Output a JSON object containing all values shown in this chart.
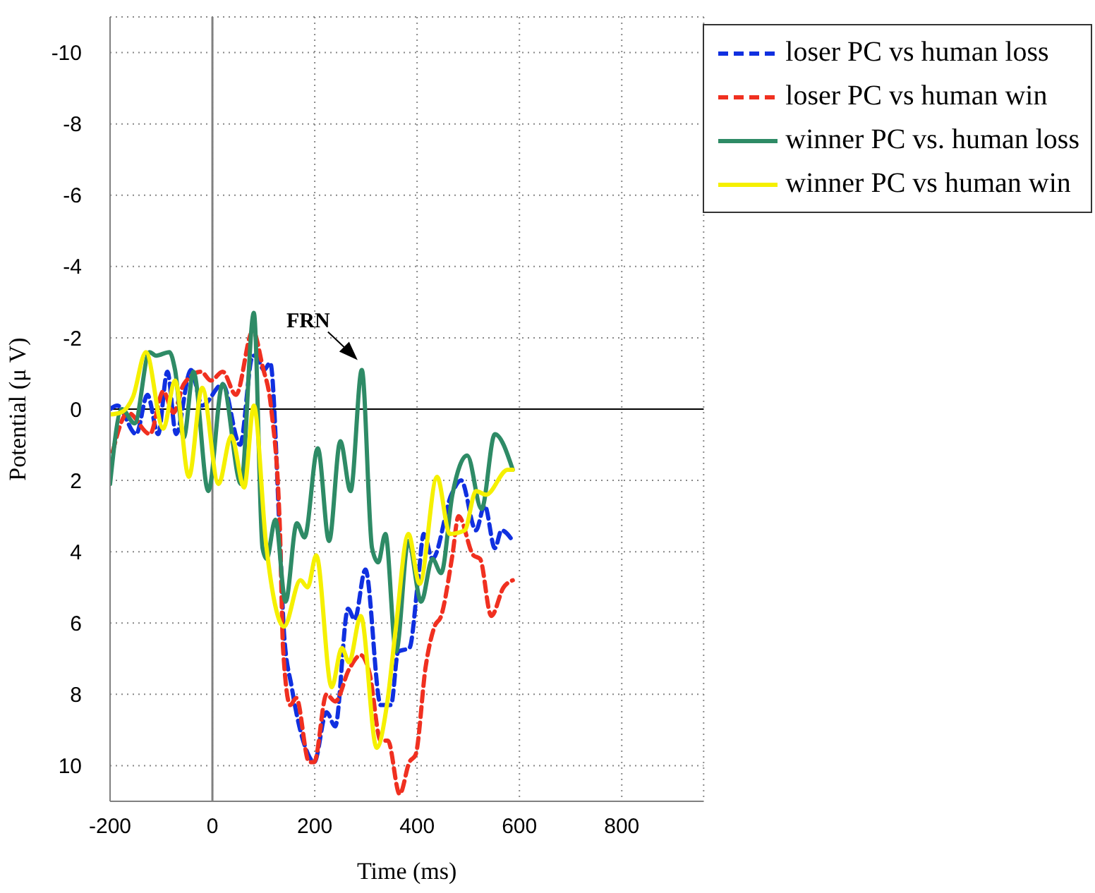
{
  "chart_data": {
    "type": "line",
    "xlabel": "Time (ms)",
    "ylabel": "Potential (μ V)",
    "xlim": [
      -200,
      960
    ],
    "xticks": [
      -200,
      0,
      200,
      400,
      600,
      800
    ],
    "ylim": [
      11,
      -11
    ],
    "yticks": [
      -10,
      -8,
      -6,
      -4,
      -2,
      0,
      2,
      4,
      6,
      8,
      10
    ],
    "grid": true,
    "legend": "top right",
    "marker": "none",
    "ref_lines": [
      {
        "axis": "x",
        "value": 0,
        "color": "#808080"
      },
      {
        "axis": "y",
        "value": 0,
        "color": "#000000"
      }
    ],
    "annotations": [
      {
        "text": "FRN",
        "x": 292,
        "y": -1.1
      }
    ],
    "series": [
      {
        "name": "loser PC vs human loss",
        "color": "#1030e0",
        "line_style": "dashed",
        "x": [
          -200,
          -186,
          -149,
          -127,
          -106,
          -88,
          -71,
          -42,
          -20,
          20,
          54,
          79,
          84,
          101,
          113,
          132,
          140,
          155,
          182,
          199,
          223,
          240,
          265,
          278,
          299,
          329,
          349,
          363,
          385,
          402,
          413,
          430,
          467,
          486,
          515,
          532,
          552,
          565,
          587
        ],
        "values": [
          0,
          -0.1,
          0.7,
          -0.4,
          0.7,
          -1.05,
          0.7,
          -1.1,
          -0.1,
          -0.7,
          1.0,
          -1.5,
          -1.5,
          -1.1,
          -1.3,
          3.7,
          6.3,
          7.8,
          9.5,
          9.9,
          8.5,
          8.9,
          5.6,
          5.9,
          4.5,
          8.3,
          8.3,
          6.8,
          6.7,
          4.8,
          3.5,
          4.2,
          2.4,
          2.0,
          3.4,
          2.7,
          3.9,
          3.4,
          3.7
        ]
      },
      {
        "name": "loser PC vs human win",
        "color": "#f03020",
        "line_style": "dashed",
        "x": [
          -195,
          -165,
          -122,
          -96,
          -76,
          -56,
          -22,
          -3,
          20,
          46,
          79,
          98,
          115,
          132,
          138,
          152,
          164,
          189,
          199,
          223,
          240,
          267,
          290,
          307,
          329,
          343,
          366,
          385,
          397,
          417,
          434,
          447,
          469,
          481,
          510,
          523,
          545,
          569,
          587
        ],
        "values": [
          1.2,
          0.1,
          0.7,
          -0.5,
          0.1,
          -0.7,
          -1.05,
          -0.8,
          -1.05,
          -0.4,
          -2.2,
          -1.2,
          0,
          3.4,
          6.7,
          8.3,
          8.1,
          9.9,
          9.9,
          8.0,
          8.2,
          7.3,
          6.9,
          7.4,
          9.3,
          9.3,
          10.8,
          9.9,
          9.7,
          7.2,
          6.1,
          5.8,
          4.1,
          3.0,
          4.1,
          4.2,
          5.8,
          5.0,
          4.8
        ]
      },
      {
        "name": "winner PC vs. human loss",
        "color": "#2e8b66",
        "line_style": "solid",
        "x": [
          -200,
          -177,
          -152,
          -123,
          -110,
          -84,
          -73,
          -56,
          -37,
          -8,
          20,
          56,
          81,
          98,
          106,
          123,
          143,
          165,
          180,
          206,
          228,
          250,
          270,
          292,
          312,
          324,
          338,
          359,
          383,
          408,
          430,
          447,
          469,
          498,
          526,
          552,
          587
        ],
        "values": [
          2.1,
          0,
          0.4,
          -1.6,
          -1.5,
          -1.6,
          -1.1,
          0.8,
          -1.05,
          2.3,
          -0.7,
          2.1,
          -2.7,
          3.9,
          4.2,
          3.1,
          5.4,
          3.2,
          3.6,
          1.1,
          3.7,
          0.9,
          2.3,
          -1.1,
          3.9,
          4.3,
          3.5,
          6.8,
          3.7,
          5.4,
          4.2,
          4.6,
          2.4,
          1.3,
          2.8,
          0.7,
          1.7
        ]
      },
      {
        "name": "winner PC vs human win",
        "color": "#f5f000",
        "line_style": "solid",
        "x": [
          -200,
          -180,
          -155,
          -130,
          -96,
          -73,
          -46,
          -20,
          12,
          37,
          62,
          81,
          105,
          140,
          172,
          186,
          203,
          233,
          253,
          267,
          290,
          321,
          341,
          358,
          383,
          405,
          439,
          464,
          493,
          515,
          535,
          577,
          587
        ],
        "values": [
          0.15,
          0.1,
          -0.35,
          -1.6,
          0.55,
          -0.8,
          1.9,
          -0.6,
          2.1,
          0.75,
          2.2,
          -0.1,
          3.8,
          6.1,
          4.8,
          5.0,
          4.1,
          7.8,
          6.7,
          7.1,
          5.8,
          9.5,
          8.3,
          6.2,
          3.5,
          4.9,
          1.9,
          3.5,
          3.4,
          2.3,
          2.4,
          1.7,
          1.7
        ]
      }
    ]
  }
}
